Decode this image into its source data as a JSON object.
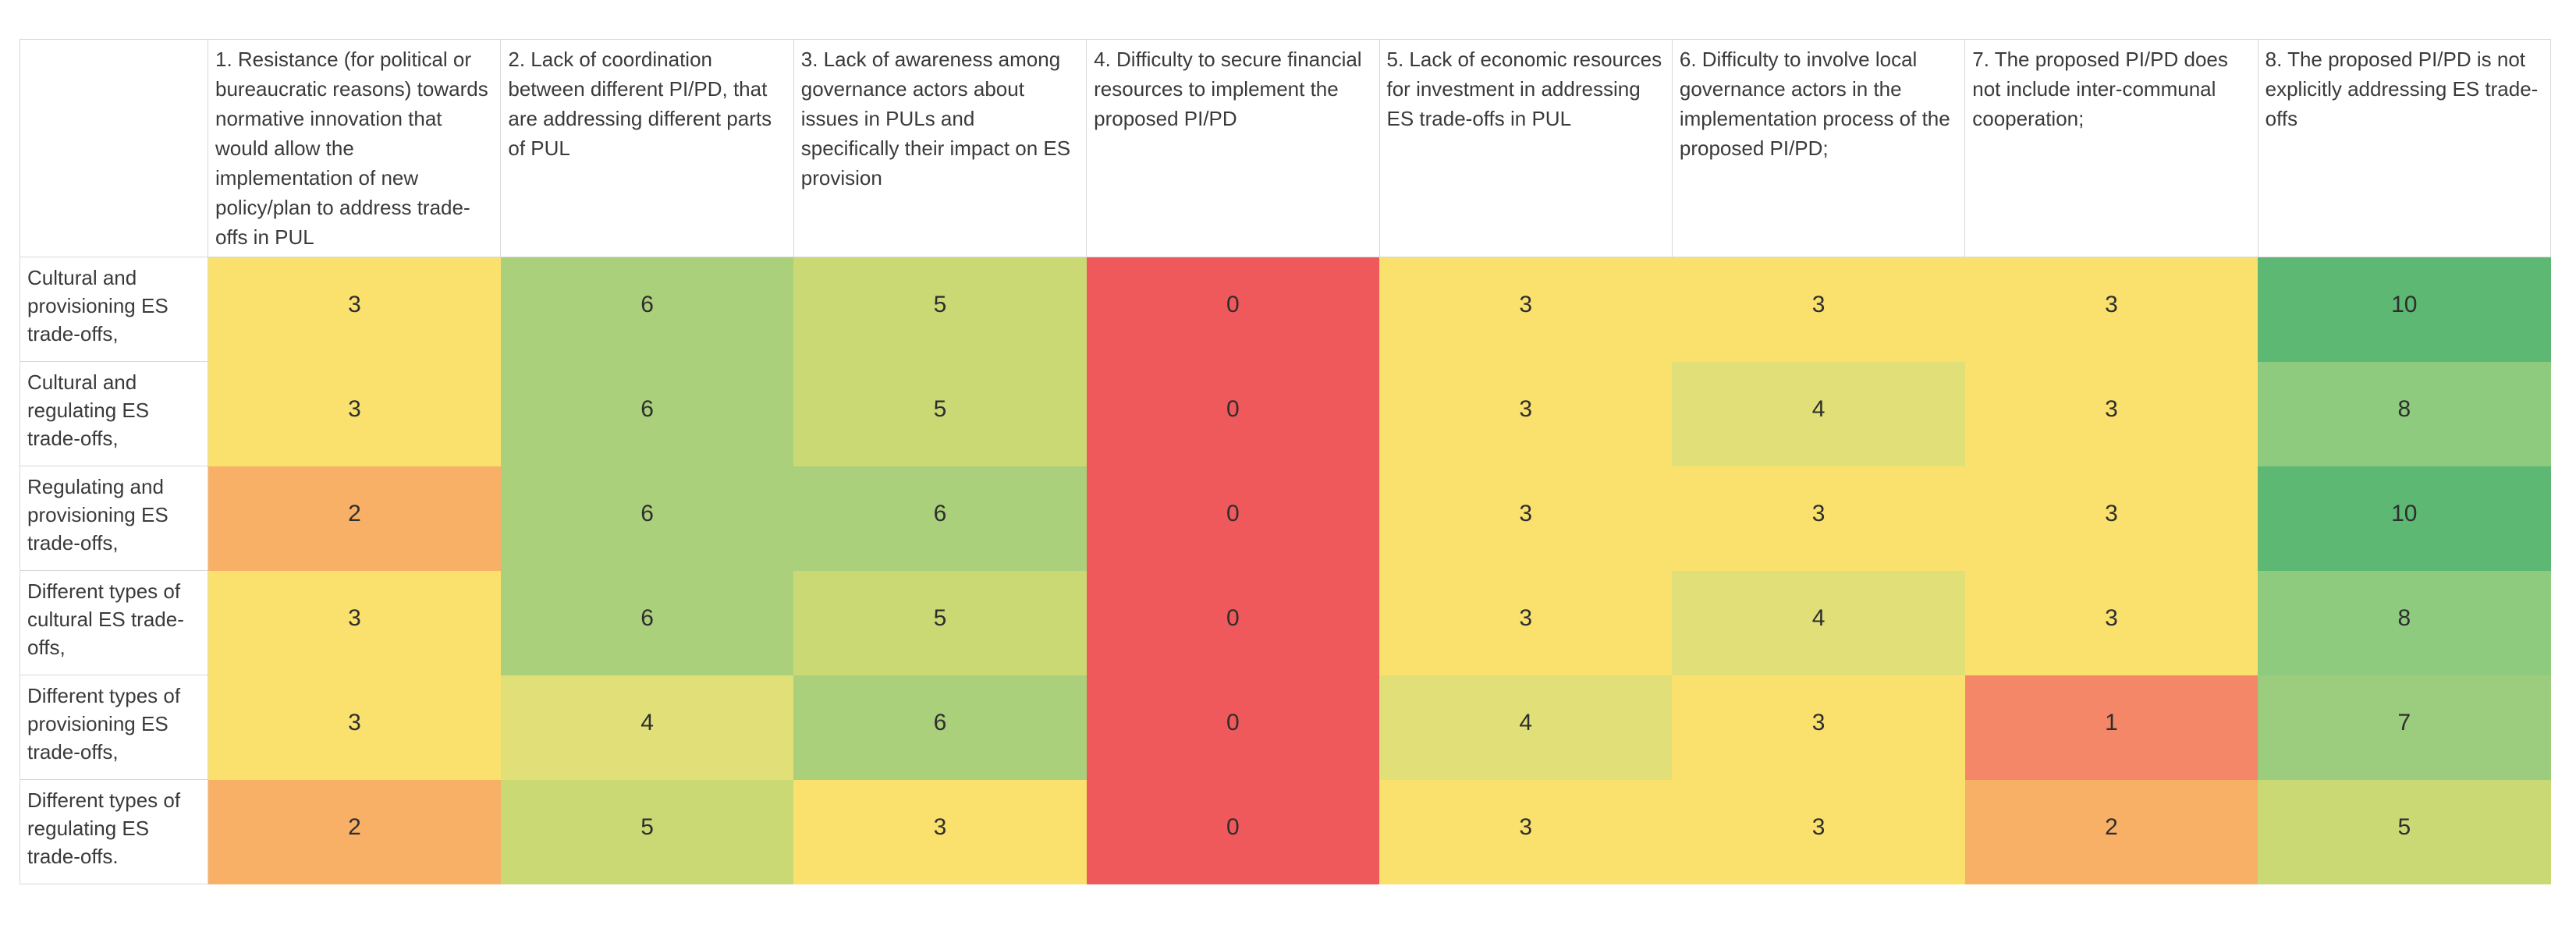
{
  "chart_data": {
    "type": "heatmap",
    "title": "",
    "columns": [
      "1. Resistance (for political or bureaucratic reasons) towards normative innovation that would allow the implementation of new policy/plan to address trade-offs in PUL",
      "2. Lack of coordination between different PI/PD, that are addressing different parts of PUL",
      "3. Lack of awareness among governance actors about issues in PULs and specifically their impact on ES provision",
      "4. Difficulty to secure financial resources to implement the proposed PI/PD",
      "5. Lack of economic resources for investment in addressing ES trade-offs in PUL",
      "6. Difficulty to involve local governance actors in the implementation process of the proposed PI/PD;",
      "7. The proposed PI/PD does not include inter-communal cooperation;",
      "8. The proposed PI/PD is not explicitly addressing ES trade-offs"
    ],
    "rows": [
      "Cultural and provisioning ES trade-offs,",
      "Cultural and regulating ES trade-offs,",
      "Regulating and provisioning ES trade-offs,",
      "Different types of cultural ES trade-offs,",
      "Different types of provisioning ES trade-offs,",
      "Different types of regulating ES trade-offs."
    ],
    "values": [
      [
        3,
        6,
        5,
        0,
        3,
        3,
        3,
        10
      ],
      [
        3,
        6,
        5,
        0,
        3,
        4,
        3,
        8
      ],
      [
        2,
        6,
        6,
        0,
        3,
        3,
        3,
        10
      ],
      [
        3,
        6,
        5,
        0,
        3,
        4,
        3,
        8
      ],
      [
        3,
        4,
        6,
        0,
        4,
        3,
        1,
        7
      ],
      [
        2,
        5,
        3,
        0,
        3,
        3,
        2,
        5
      ]
    ],
    "value_range": [
      0,
      10
    ],
    "color_scale": {
      "0": "#F0595C",
      "1": "#F48768",
      "2": "#F8B067",
      "3": "#FAE16D",
      "4": "#E1E078",
      "5": "#CBD975",
      "6": "#ABD07B",
      "7": "#9CCC7D",
      "8": "#8FCB7F",
      "10": "#5CB873"
    },
    "legend": "none",
    "grid": "light gray borders on header row and row-label column only"
  }
}
